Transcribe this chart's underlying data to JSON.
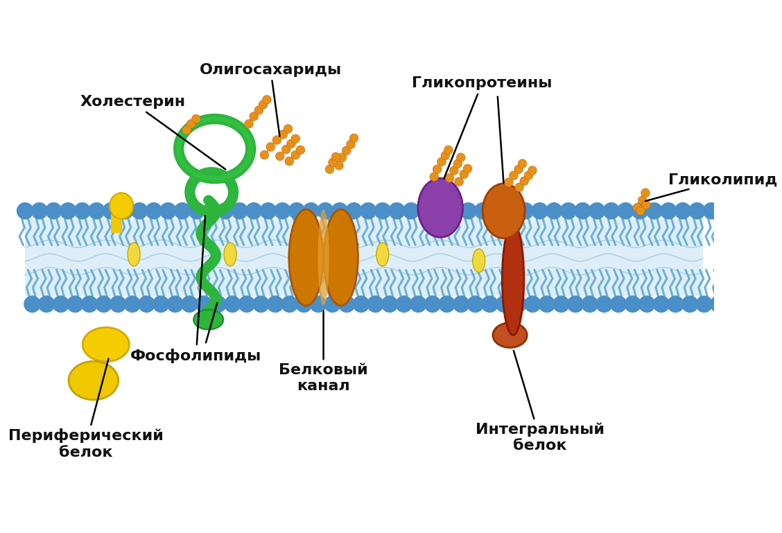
{
  "background_color": "#ffffff",
  "figsize": [
    11.28,
    7.69
  ],
  "dpi": 100,
  "labels": {
    "cholesterol": "Холестерин",
    "oligosaccharides": "Олигосахариды",
    "glycoproteins": "Гликопротеины",
    "glycolipid": "Гликолипид",
    "phospholipids": "Фосфолипиды",
    "protein_channel": "Белковый\nканал",
    "peripheral_protein": "Периферический\nбелок",
    "integral_protein": "Интегральный\nбелок"
  }
}
